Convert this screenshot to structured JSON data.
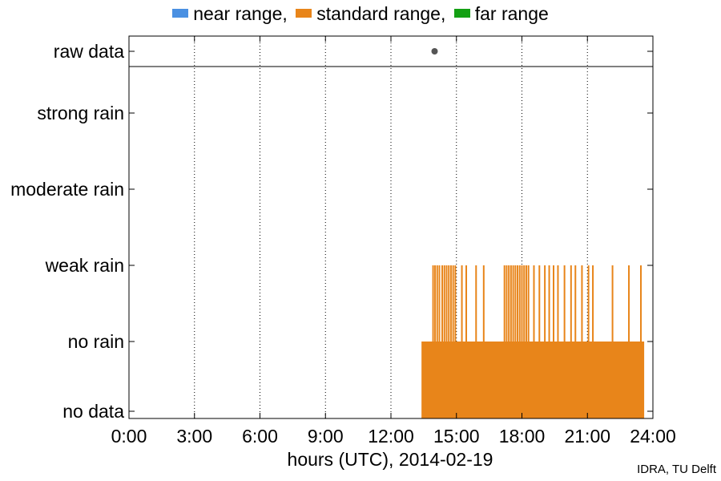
{
  "legend": [
    {
      "label": "near range,",
      "color": "#4a90e2"
    },
    {
      "label": "standard range,",
      "color": "#e8851a"
    },
    {
      "label": "far range",
      "color": "#14a014"
    }
  ],
  "credit": "IDRA, TU Delft",
  "chart_data": {
    "type": "bar",
    "xlabel": "hours (UTC), 2014-02-19",
    "xlim": [
      0,
      24
    ],
    "xticks": [
      "0:00",
      "3:00",
      "6:00",
      "9:00",
      "12:00",
      "15:00",
      "18:00",
      "21:00",
      "24:00"
    ],
    "vertical_grid": "dotted",
    "categories": [
      "no data",
      "no rain",
      "weak rain",
      "moderate rain",
      "strong rain"
    ],
    "raw_data_label": "raw data",
    "raw_data_points_hours": [
      14.0
    ],
    "series": [
      {
        "name": "standard range,",
        "color": "#e8851a",
        "no_rain_interval_hours": [
          13.4,
          23.6
        ],
        "weak_rain_hours": [
          13.93,
          14.02,
          14.12,
          14.22,
          14.35,
          14.45,
          14.55,
          14.65,
          14.75,
          14.85,
          14.95,
          15.25,
          15.45,
          15.9,
          16.25,
          17.2,
          17.3,
          17.4,
          17.5,
          17.6,
          17.7,
          17.8,
          17.9,
          18.0,
          18.1,
          18.2,
          18.3,
          18.55,
          18.8,
          19.05,
          19.25,
          19.45,
          19.65,
          19.95,
          20.25,
          20.45,
          20.75,
          21.05,
          21.25,
          22.15,
          22.9,
          23.45
        ]
      }
    ]
  }
}
